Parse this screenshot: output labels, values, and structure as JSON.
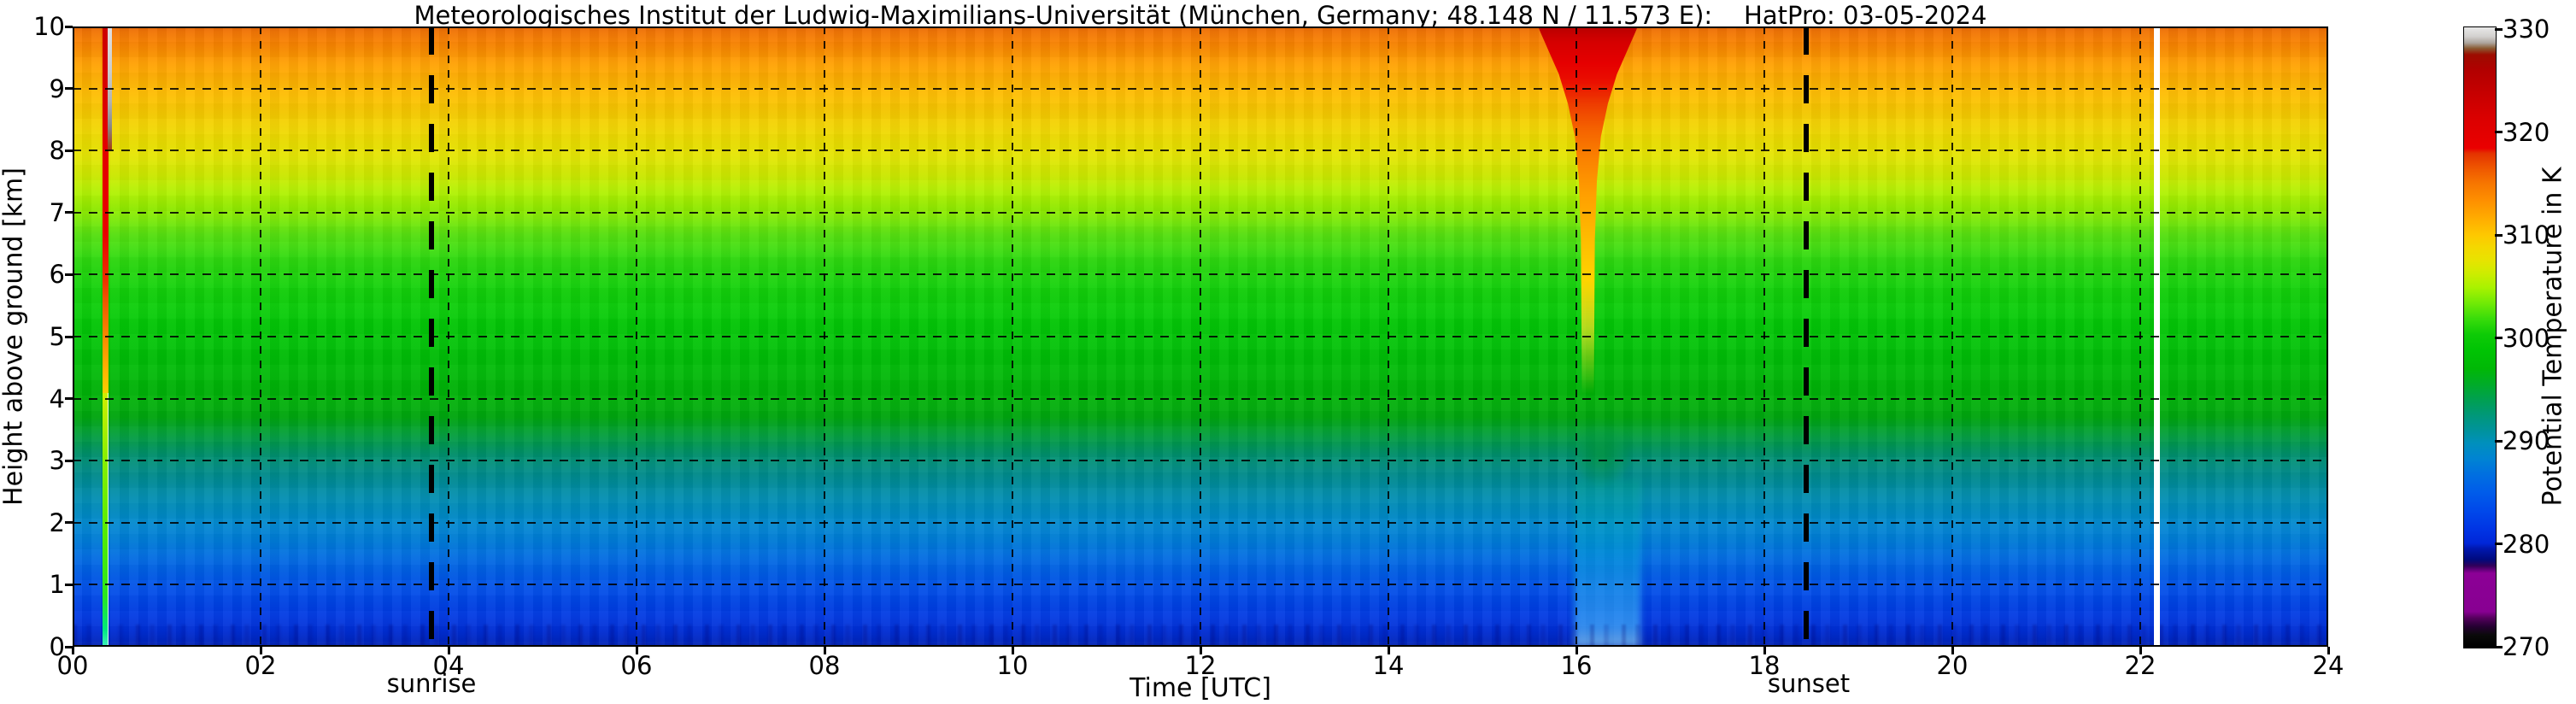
{
  "title": "Meteorologisches Institut der Ludwig-Maximilians-Universität (München, Germany; 48.148 N / 11.573 E):    HatPro: 03-05-2024",
  "plot": {
    "x_axis": {
      "label": "Time [UTC]",
      "ticks": [
        "00",
        "02",
        "04",
        "06",
        "08",
        "10",
        "12",
        "14",
        "16",
        "18",
        "20",
        "22",
        "24"
      ]
    },
    "y_axis": {
      "label": "Height above ground [km]",
      "ticks": [
        "10",
        "9",
        "8",
        "7",
        "6",
        "5",
        "4",
        "3",
        "2",
        "1",
        "0"
      ]
    },
    "annotations": {
      "sunrise": "sunrise",
      "sunset": "sunset"
    }
  },
  "colorbar": {
    "label": "Potential Temperature in K",
    "ticks": [
      "330",
      "320",
      "310",
      "300",
      "290",
      "280",
      "270"
    ]
  },
  "chart_data": {
    "type": "heatmap",
    "title": "Meteorologisches Institut der Ludwig-Maximilians-Universität (München, Germany; 48.148 N / 11.573 E):    HatPro: 03-05-2024",
    "xlabel": "Time [UTC]",
    "ylabel": "Height above ground [km]",
    "x_range_hours_utc": [
      0,
      24
    ],
    "x_tick_step_hours": 2,
    "y_range_km": [
      0,
      10
    ],
    "grid": "dotted black lines every 2 h and every 1 km",
    "colorbar": {
      "label": "Potential Temperature in K",
      "range_K": [
        270,
        330
      ],
      "tick_values_K": [
        270,
        280,
        290,
        300,
        310,
        320,
        330
      ],
      "scale_stops": [
        {
          "value_K": 270,
          "color": "#000000"
        },
        {
          "value_K": 271.5,
          "color": "#250032"
        },
        {
          "value_K": 275,
          "color": "#8c0096"
        },
        {
          "value_K": 279,
          "color": "#000a7e"
        },
        {
          "value_K": 280.5,
          "color": "#0028dc"
        },
        {
          "value_K": 285,
          "color": "#0052e8"
        },
        {
          "value_K": 290,
          "color": "#008fc2"
        },
        {
          "value_K": 293,
          "color": "#009880"
        },
        {
          "value_K": 296,
          "color": "#00ae16"
        },
        {
          "value_K": 300,
          "color": "#00c604"
        },
        {
          "value_K": 305,
          "color": "#3ede0a"
        },
        {
          "value_K": 310,
          "color": "#cfeb00"
        },
        {
          "value_K": 315,
          "color": "#ffab00"
        },
        {
          "value_K": 320,
          "color": "#e43200"
        },
        {
          "value_K": 323,
          "color": "#e60000"
        },
        {
          "value_K": 327,
          "color": "#b40000"
        },
        {
          "value_K": 328,
          "color": "#8a5a32"
        },
        {
          "value_K": 329,
          "color": "#ada59d"
        },
        {
          "value_K": 330,
          "color": "#e8e8e8"
        }
      ]
    },
    "mean_vertical_profile": {
      "height_km": [
        0,
        0.5,
        1,
        1.5,
        2,
        2.5,
        3,
        3.5,
        4,
        5,
        6,
        7,
        7.5,
        8,
        9,
        10
      ],
      "potential_temperature_K": [
        281,
        282.5,
        284,
        286,
        288,
        290,
        292,
        295,
        298,
        300.5,
        302.5,
        306.5,
        308.5,
        311,
        314.5,
        317.5
      ]
    },
    "events": [
      {
        "time_utc": "00:20",
        "description": "narrow vertical interference/calibration spike: red (>320 K) from 10 km down to ~5.5 km with gray >330 K cap near 8-10 km, orange 5.5-4 km, bright yellow-green line below 4 km to the surface"
      },
      {
        "time_utc": "03:50",
        "description": "sunrise marker - thick black dashed vertical line"
      },
      {
        "time_utc": "15:45-16:45",
        "description": "warm plume aloft: red >320 K at 9-10 km narrowing into an orange funnel reaching ~5 km around 16:15, slight cool/teal dip below it down to the surface"
      },
      {
        "time_utc": "18:30",
        "description": "sunset marker - thick black dashed vertical line"
      },
      {
        "time_utc": "22:12",
        "description": "missing data: white vertical stripe over the full 0-10 km column"
      }
    ]
  }
}
